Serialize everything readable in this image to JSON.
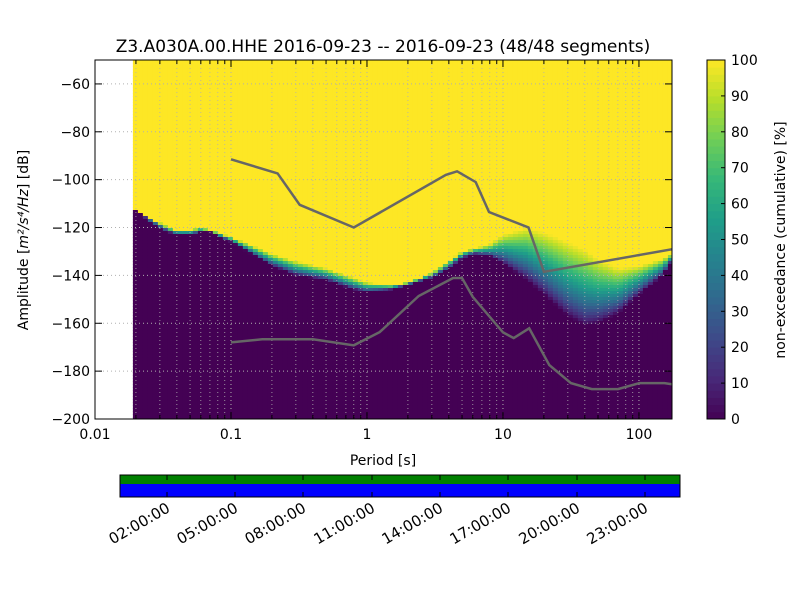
{
  "chart_data": [
    {
      "type": "heatmap",
      "title": "Z3.A030A.00.HHE   2016-09-23 -- 2016-09-23  (48/48 segments)",
      "xlabel": "Period [s]",
      "ylabel_prefix": "Amplitude [",
      "ylabel_math": "m²/s⁴/Hz",
      "ylabel_suffix": "] [dB]",
      "x_scale": "log",
      "xlim": [
        0.01,
        175
      ],
      "ylim": [
        -200,
        -50
      ],
      "x_ticks": [
        {
          "value": 0.01,
          "label": "0.01"
        },
        {
          "value": 0.1,
          "label": "0.1"
        },
        {
          "value": 1,
          "label": "1"
        },
        {
          "value": 10,
          "label": "10"
        },
        {
          "value": 100,
          "label": "100"
        }
      ],
      "y_ticks": [
        {
          "value": -60,
          "label": "−60"
        },
        {
          "value": -80,
          "label": "−80"
        },
        {
          "value": -100,
          "label": "−100"
        },
        {
          "value": -120,
          "label": "−120"
        },
        {
          "value": -140,
          "label": "−140"
        },
        {
          "value": -160,
          "label": "−160"
        },
        {
          "value": -180,
          "label": "−180"
        },
        {
          "value": -200,
          "label": "−200"
        }
      ],
      "grid": true,
      "data_start_period": 0.019,
      "colorbar": {
        "label": "non-exceedance (cumulative) [%]",
        "range": [
          0,
          100
        ],
        "ticks": [
          {
            "value": 0,
            "label": "0"
          },
          {
            "value": 10,
            "label": "10"
          },
          {
            "value": 20,
            "label": "20"
          },
          {
            "value": 30,
            "label": "30"
          },
          {
            "value": 40,
            "label": "40"
          },
          {
            "value": 50,
            "label": "50"
          },
          {
            "value": 60,
            "label": "60"
          },
          {
            "value": 70,
            "label": "70"
          },
          {
            "value": 80,
            "label": "80"
          },
          {
            "value": 90,
            "label": "90"
          },
          {
            "value": 100,
            "label": "100"
          }
        ],
        "colormap": "viridis"
      },
      "psd_band": {
        "period": [
          0.019,
          0.02,
          0.025,
          0.03,
          0.035,
          0.04,
          0.05,
          0.06,
          0.07,
          0.1,
          0.15,
          0.2,
          0.3,
          0.5,
          0.8,
          1.0,
          1.5,
          2.0,
          3.0,
          4.0,
          5.0,
          6.0,
          8.0,
          10.0,
          15.0,
          20.0,
          25.0,
          30.0,
          40.0,
          50.0,
          70.0,
          100.0,
          150.0,
          175.0
        ],
        "lower": [
          -113,
          -113,
          -117,
          -120,
          -122,
          -123,
          -123,
          -122,
          -122,
          -126,
          -132,
          -136,
          -140,
          -142,
          -146,
          -147,
          -146,
          -144,
          -141,
          -137,
          -133,
          -131,
          -132,
          -135,
          -142,
          -148,
          -153,
          -157,
          -161,
          -160,
          -156,
          -148,
          -140,
          -134
        ],
        "upper": [
          -113,
          -113,
          -116,
          -118,
          -120,
          -121,
          -121,
          -120,
          -121,
          -124,
          -128,
          -131,
          -134,
          -137,
          -141,
          -143,
          -144,
          -143,
          -139,
          -134,
          -130,
          -129,
          -127,
          -123,
          -120,
          -122,
          -124,
          -126,
          -129,
          -133,
          -137,
          -136,
          -133,
          -131
        ]
      },
      "nhnm": {
        "name": "",
        "color": "#666666",
        "x": [
          0.1,
          0.22,
          0.32,
          0.8,
          3.8,
          4.6,
          6.3,
          7.9,
          15.4,
          20.0,
          354.8
        ],
        "y": [
          -91.5,
          -97.4,
          -110.5,
          -120.0,
          -98.0,
          -96.5,
          -101.0,
          -113.5,
          -120.0,
          -138.5,
          -126.0
        ]
      },
      "nlnm": {
        "name": "",
        "color": "#666666",
        "x": [
          0.1,
          0.17,
          0.4,
          0.8,
          1.24,
          2.4,
          4.3,
          5.0,
          6.0,
          10.0,
          12.0,
          15.6,
          21.9,
          31.6,
          45.0,
          70.0,
          101.0,
          154.0,
          175.0
        ],
        "y": [
          -168.0,
          -166.7,
          -166.7,
          -169.2,
          -163.7,
          -148.6,
          -141.1,
          -141.1,
          -149.0,
          -163.8,
          -166.2,
          -162.1,
          -177.5,
          -185.0,
          -187.5,
          -187.5,
          -185.0,
          -185.0,
          -185.5
        ]
      }
    },
    {
      "type": "timeline",
      "tick_labels": [
        "02:00:00",
        "05:00:00",
        "08:00:00",
        "11:00:00",
        "14:00:00",
        "17:00:00",
        "20:00:00",
        "23:00:00"
      ],
      "bands": [
        {
          "name": "",
          "color": "#008000"
        },
        {
          "name": "",
          "color": "#0000ff"
        }
      ]
    }
  ]
}
